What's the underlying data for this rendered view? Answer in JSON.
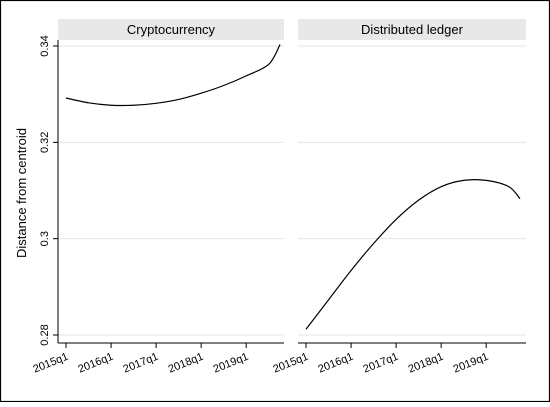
{
  "chart_data": {
    "type": "line",
    "ylabel": "Distance from centroid",
    "xlabel": "",
    "ylim": [
      0.28,
      0.34
    ],
    "yticks": [
      "0.28",
      "0.3",
      "0.32",
      "0.34"
    ],
    "ytick_values": [
      0.28,
      0.3,
      0.32,
      0.34
    ],
    "grid": true,
    "panels": [
      {
        "title": "Cryptocurrency",
        "xticks": [
          "2015q1",
          "2016q1",
          "2017q1",
          "2018q1",
          "2019q1"
        ],
        "x": [
          "2015q1",
          "2015q3",
          "2016q1",
          "2016q3",
          "2017q1",
          "2017q3",
          "2018q1",
          "2018q3",
          "2019q1",
          "2019q3",
          "2019q4"
        ],
        "y": [
          0.3292,
          0.3282,
          0.3277,
          0.3277,
          0.3281,
          0.3289,
          0.3302,
          0.3318,
          0.3338,
          0.3362,
          0.3403
        ]
      },
      {
        "title": "Distributed ledger",
        "xticks": [
          "2015q1",
          "2016q1",
          "2017q1",
          "2018q1",
          "2019q1"
        ],
        "x": [
          "2015q1",
          "2015q3",
          "2016q1",
          "2016q3",
          "2017q1",
          "2017q3",
          "2018q1",
          "2018q3",
          "2019q1",
          "2019q3",
          "2019q4"
        ],
        "y": [
          0.2812,
          0.2873,
          0.2934,
          0.299,
          0.304,
          0.308,
          0.3108,
          0.3121,
          0.3121,
          0.3108,
          0.3083
        ]
      }
    ]
  }
}
